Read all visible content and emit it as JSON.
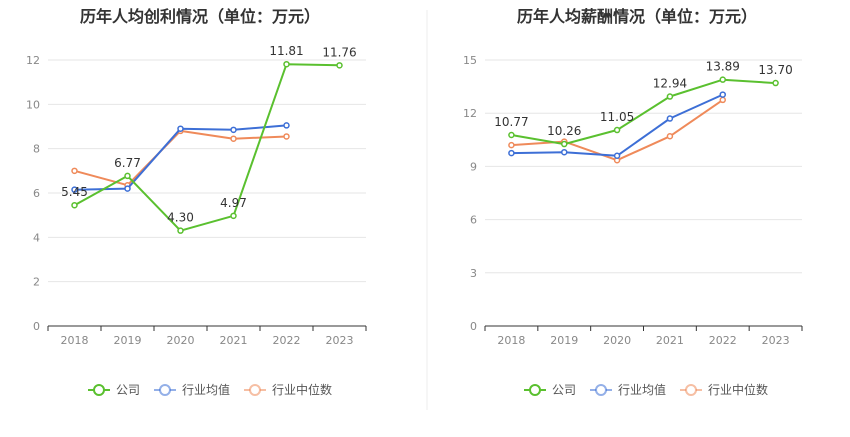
{
  "colors": {
    "company": "#5ac02f",
    "industry_avg": "#3d6fd6",
    "industry_median": "#ef8a5a",
    "grid": "#e6e6e6",
    "axis": "#333333",
    "divider": "#eeeeee"
  },
  "legend": {
    "company": "公司",
    "industry_avg": "行业均值",
    "industry_median": "行业中位数"
  },
  "chart_data": [
    {
      "type": "line",
      "title": "历年人均创利情况（单位：万元）",
      "categories": [
        "2018",
        "2019",
        "2020",
        "2021",
        "2022",
        "2023"
      ],
      "yticks": [
        0,
        2,
        4,
        6,
        8,
        10,
        12
      ],
      "ylim": [
        0,
        12
      ],
      "grid": true,
      "legend_position": "bottom",
      "series": [
        {
          "key": "company",
          "name": "公司",
          "values": [
            5.45,
            6.77,
            4.3,
            4.97,
            11.81,
            11.76
          ],
          "labels": [
            "5.45",
            "6.77",
            "4.30",
            "4.97",
            "11.81",
            "11.76"
          ]
        },
        {
          "key": "industry_avg",
          "name": "行业均值",
          "values": [
            6.15,
            6.2,
            8.9,
            8.85,
            9.05,
            null
          ]
        },
        {
          "key": "industry_median",
          "name": "行业中位数",
          "values": [
            7.0,
            6.35,
            8.8,
            8.45,
            8.55,
            null
          ]
        }
      ]
    },
    {
      "type": "line",
      "title": "历年人均薪酬情况（单位：万元）",
      "categories": [
        "2018",
        "2019",
        "2020",
        "2021",
        "2022",
        "2023"
      ],
      "yticks": [
        0,
        3,
        6,
        9,
        12,
        15
      ],
      "ylim": [
        0,
        15
      ],
      "grid": true,
      "legend_position": "bottom",
      "series": [
        {
          "key": "company",
          "name": "公司",
          "values": [
            10.77,
            10.26,
            11.05,
            12.94,
            13.89,
            13.7
          ],
          "labels": [
            "10.77",
            "10.26",
            "11.05",
            "12.94",
            "13.89",
            "13.70"
          ]
        },
        {
          "key": "industry_avg",
          "name": "行业均值",
          "values": [
            9.75,
            9.8,
            9.6,
            11.7,
            13.05,
            null
          ]
        },
        {
          "key": "industry_median",
          "name": "行业中位数",
          "values": [
            10.2,
            10.4,
            9.35,
            10.7,
            12.75,
            null
          ]
        }
      ]
    }
  ]
}
